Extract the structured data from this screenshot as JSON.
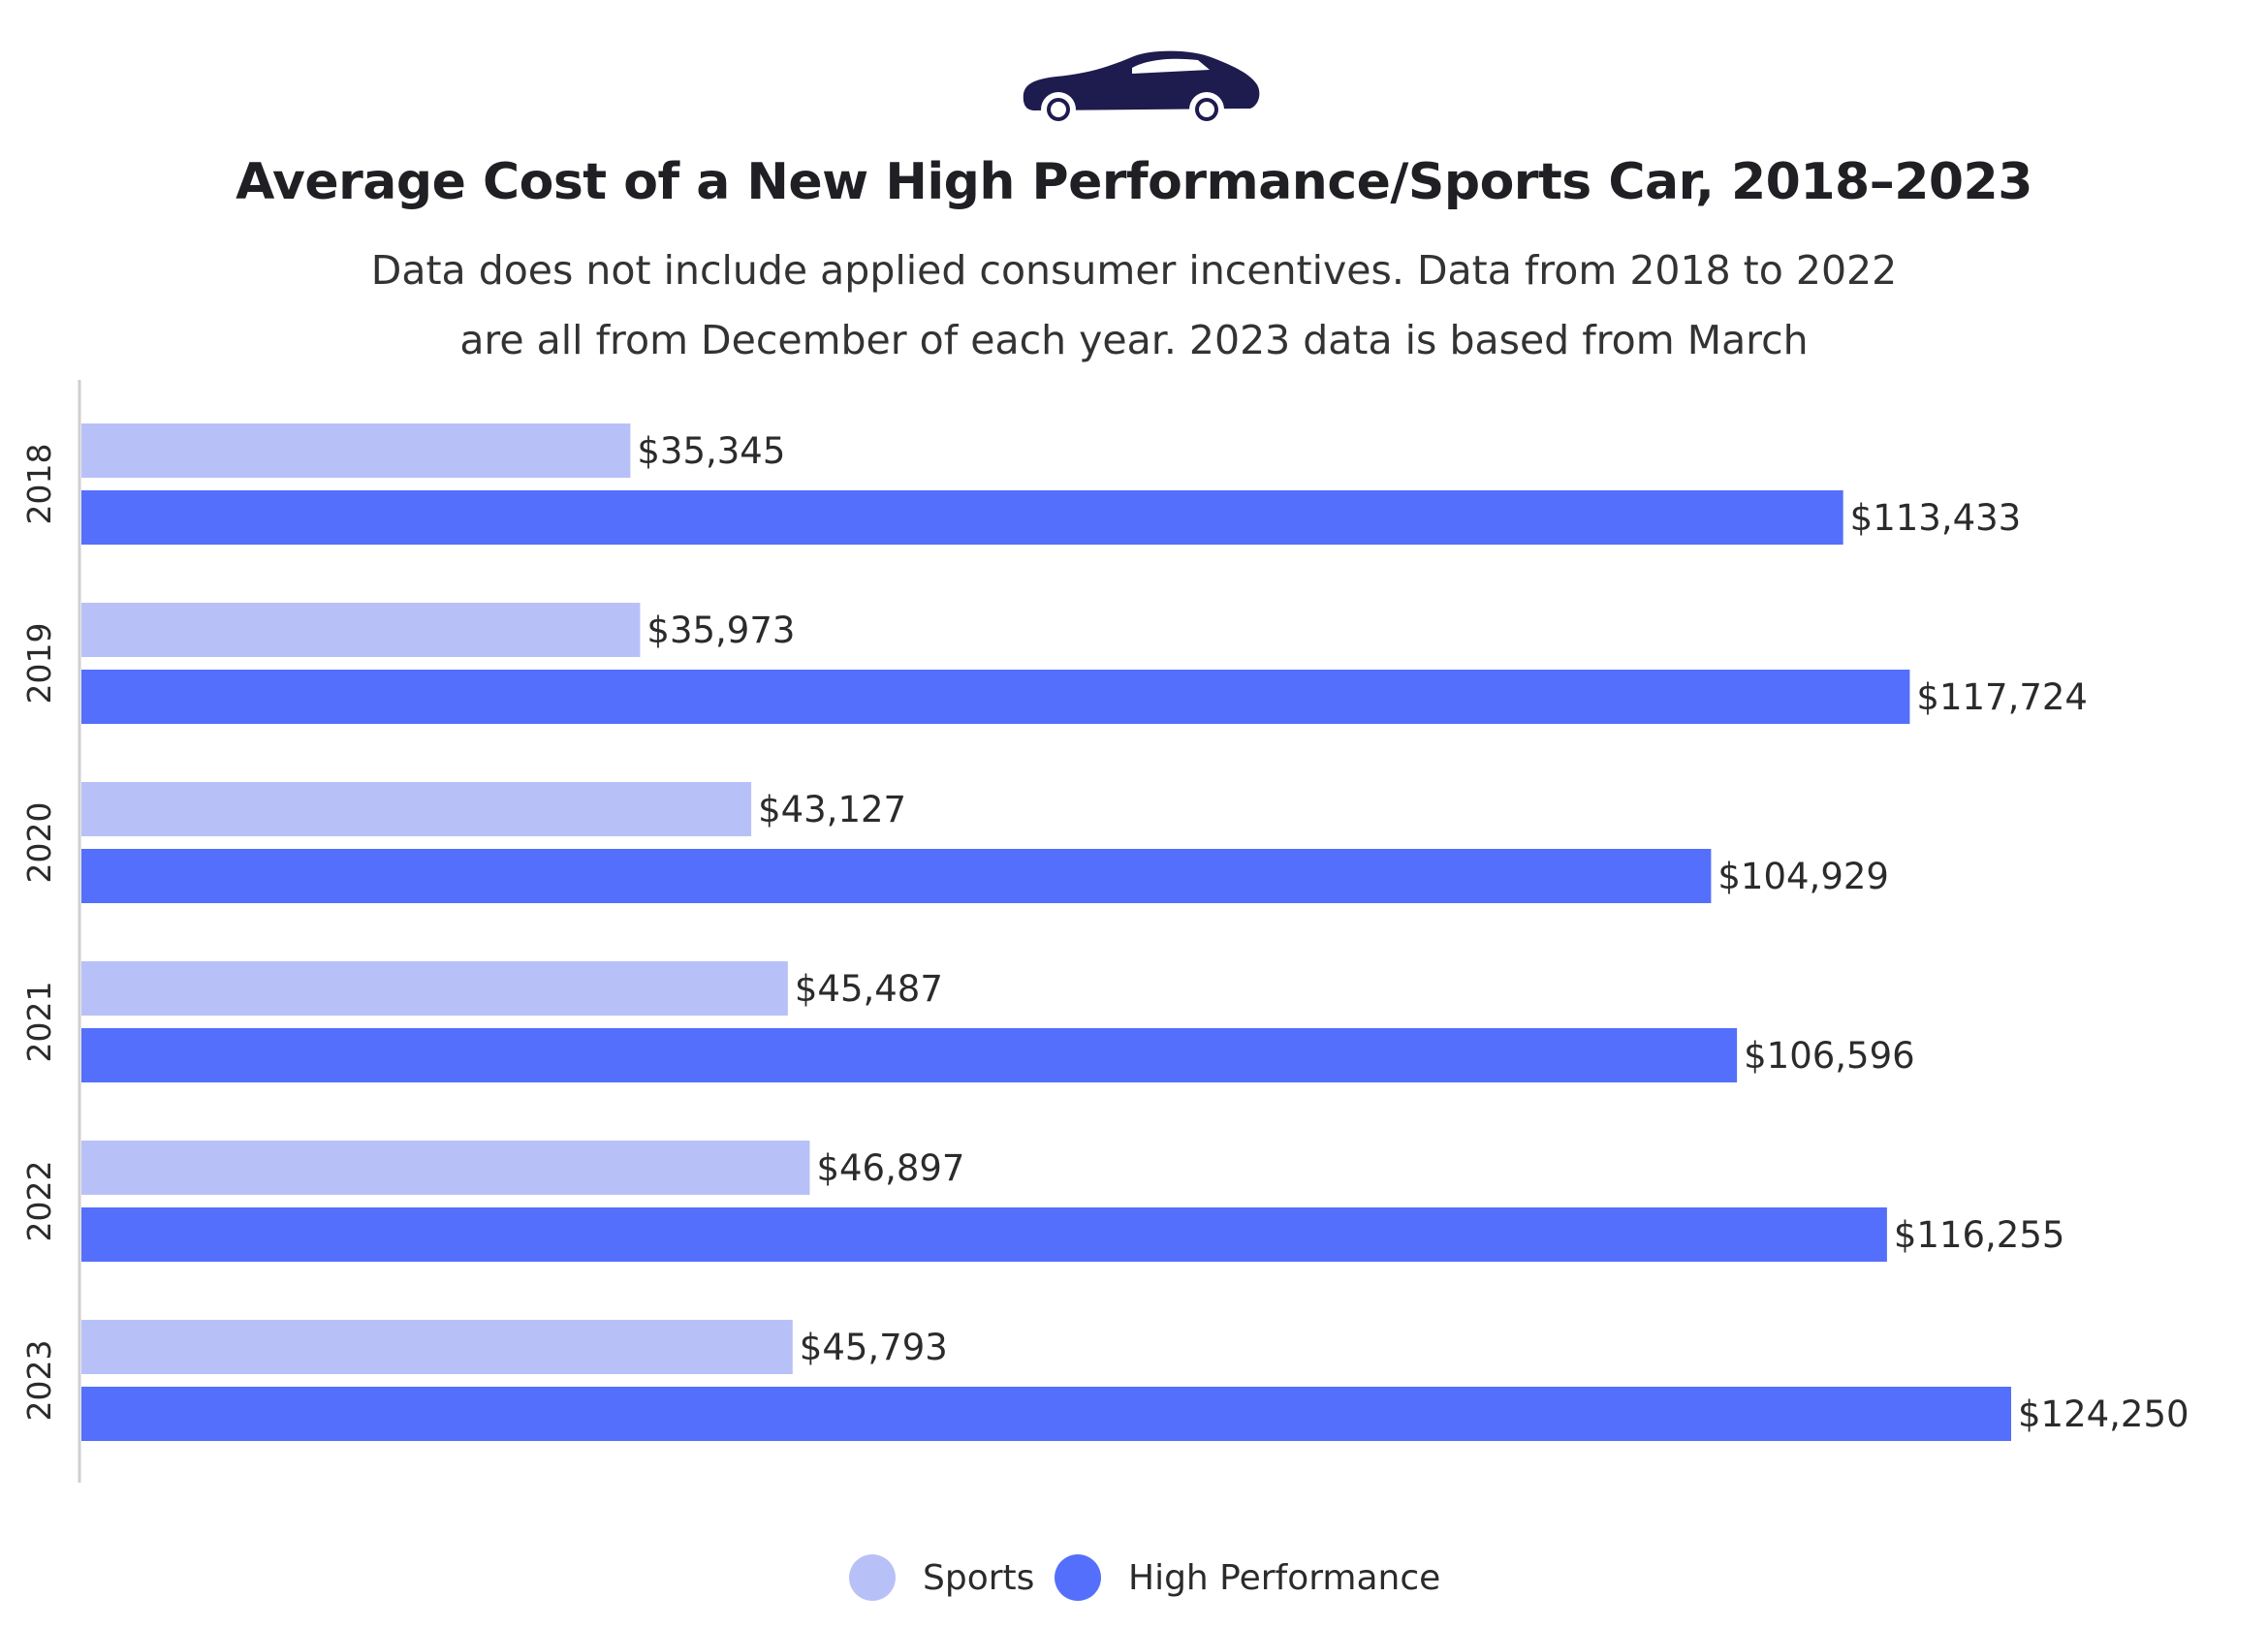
{
  "chart_data": {
    "type": "bar",
    "orientation": "horizontal",
    "title": "Average Cost of a New High Performance/Sports Car, 2018–2023",
    "subtitle_lines": [
      "Data does not include applied consumer incentives. Data from 2018 to 2022",
      "are all from December of each year. 2023 data is based from March"
    ],
    "categories": [
      "2018",
      "2019",
      "2020",
      "2021",
      "2022",
      "2023"
    ],
    "series": [
      {
        "name": "Sports",
        "color": "#b8c1f7",
        "values": [
          35345,
          35973,
          43127,
          45487,
          46897,
          45793
        ],
        "labels": [
          "$35,345",
          "$35,973",
          "$43,127",
          "$45,487",
          "$46,897",
          "$45,793"
        ]
      },
      {
        "name": "High Performance",
        "color": "#546ffb",
        "values": [
          113433,
          117724,
          104929,
          106596,
          116255,
          124250
        ],
        "labels": [
          "$113,433",
          "$117,724",
          "$104,929",
          "$106,596",
          "$116,255",
          "$124,250"
        ]
      }
    ],
    "xlim": [
      0,
      124250
    ],
    "xlabel": "",
    "ylabel": "",
    "grid": false,
    "legend": "bottom-center"
  },
  "icon": {
    "name": "car-icon",
    "color": "#1e1b4f"
  }
}
